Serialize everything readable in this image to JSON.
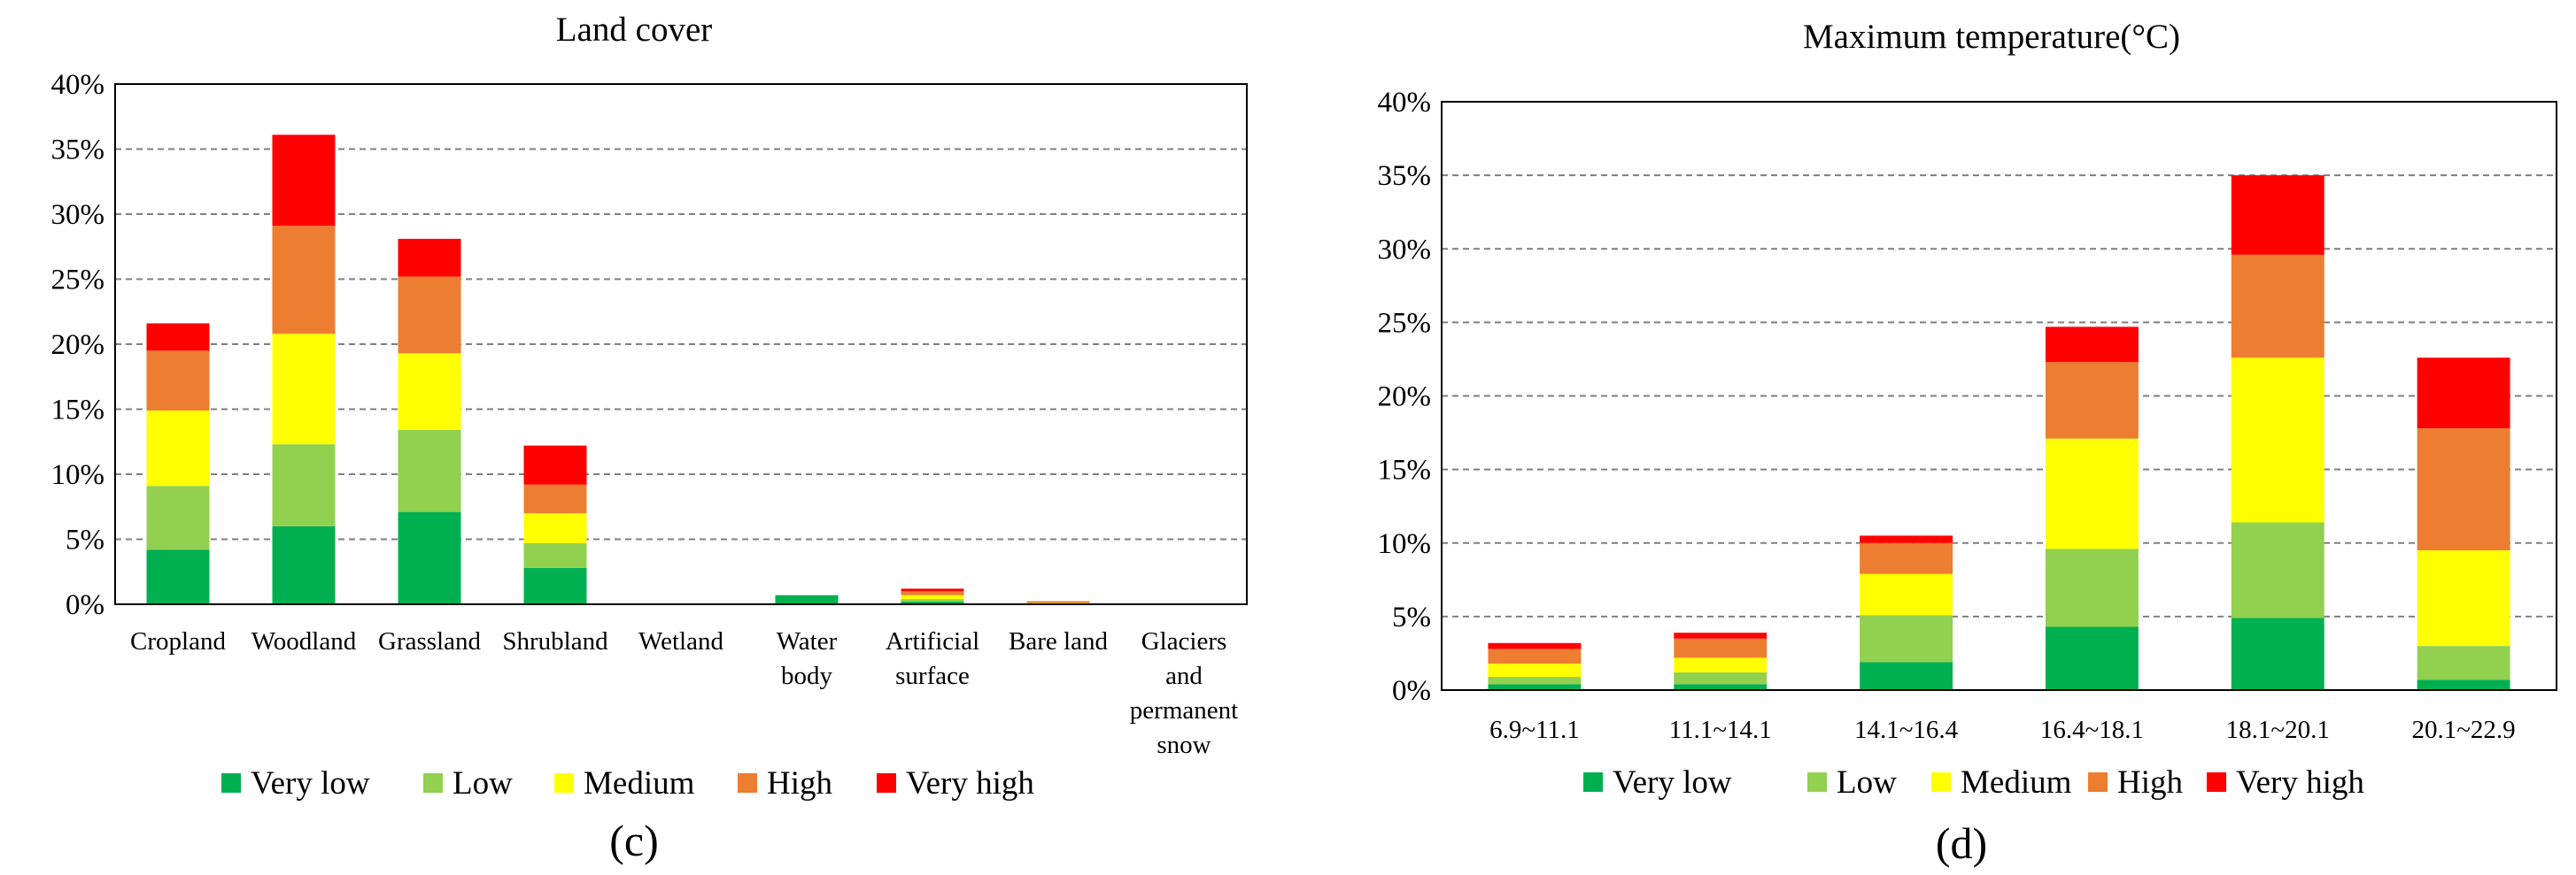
{
  "chart_data": [
    {
      "type": "bar",
      "stacked": true,
      "title": "Land cover",
      "panel_label": "(c)",
      "categories": [
        [
          "Cropland"
        ],
        [
          "Woodland"
        ],
        [
          "Grassland"
        ],
        [
          "Shrubland"
        ],
        [
          "Wetland"
        ],
        [
          "Water",
          "body"
        ],
        [
          "Artificial",
          "surface"
        ],
        [
          "Bare land"
        ],
        [
          "Glaciers",
          "and",
          "permanent",
          "snow"
        ]
      ],
      "series": [
        {
          "name": "Very low",
          "color": "#00b050",
          "values": [
            4.2,
            6.0,
            7.1,
            2.8,
            0.0,
            0.7,
            0.2,
            0.05,
            0.0
          ]
        },
        {
          "name": "Low",
          "color": "#92d050",
          "values": [
            4.9,
            6.3,
            6.3,
            1.9,
            0.0,
            0.0,
            0.2,
            0.05,
            0.0
          ]
        },
        {
          "name": "Medium",
          "color": "#ffff00",
          "values": [
            5.8,
            8.5,
            5.9,
            2.3,
            0.0,
            0.0,
            0.3,
            0.05,
            0.0
          ]
        },
        {
          "name": "High",
          "color": "#ed7d31",
          "values": [
            4.6,
            8.3,
            5.9,
            2.2,
            0.0,
            0.0,
            0.3,
            0.05,
            0.0
          ]
        },
        {
          "name": "Very high",
          "color": "#ff0000",
          "values": [
            2.1,
            7.0,
            2.9,
            3.0,
            0.0,
            0.0,
            0.2,
            0.02,
            0.0
          ]
        }
      ],
      "yticks": [
        "0%",
        "5%",
        "10%",
        "15%",
        "20%",
        "25%",
        "30%",
        "35%",
        "40%"
      ],
      "ylim": [
        0,
        40
      ],
      "xlabel": "",
      "ylabel": "",
      "legend": [
        "Very low",
        "Low",
        "Medium",
        "High",
        "Very high"
      ],
      "grid": true
    },
    {
      "type": "bar",
      "stacked": true,
      "title": "Maximum temperature(°C)",
      "panel_label": "(d)",
      "categories": [
        [
          "6.9~11.1"
        ],
        [
          "11.1~14.1"
        ],
        [
          "14.1~16.4"
        ],
        [
          "16.4~18.1"
        ],
        [
          "18.1~20.1"
        ],
        [
          "20.1~22.9"
        ]
      ],
      "series": [
        {
          "name": "Very low",
          "color": "#00b050",
          "values": [
            0.4,
            0.4,
            1.9,
            4.3,
            4.9,
            0.7
          ]
        },
        {
          "name": "Low",
          "color": "#92d050",
          "values": [
            0.5,
            0.8,
            3.2,
            5.3,
            6.5,
            2.3
          ]
        },
        {
          "name": "Medium",
          "color": "#ffff00",
          "values": [
            0.9,
            1.0,
            2.8,
            7.5,
            11.2,
            6.5
          ]
        },
        {
          "name": "High",
          "color": "#ed7d31",
          "values": [
            1.0,
            1.3,
            2.1,
            5.2,
            7.0,
            8.3
          ]
        },
        {
          "name": "Very high",
          "color": "#ff0000",
          "values": [
            0.4,
            0.4,
            0.5,
            2.4,
            5.4,
            4.8
          ]
        }
      ],
      "yticks": [
        "0%",
        "5%",
        "10%",
        "15%",
        "20%",
        "25%",
        "30%",
        "35%",
        "40%"
      ],
      "ylim": [
        0,
        40
      ],
      "xlabel": "",
      "ylabel": "",
      "legend": [
        "Very low",
        "Low",
        "Medium",
        "High",
        "Very high"
      ],
      "grid": true
    }
  ]
}
